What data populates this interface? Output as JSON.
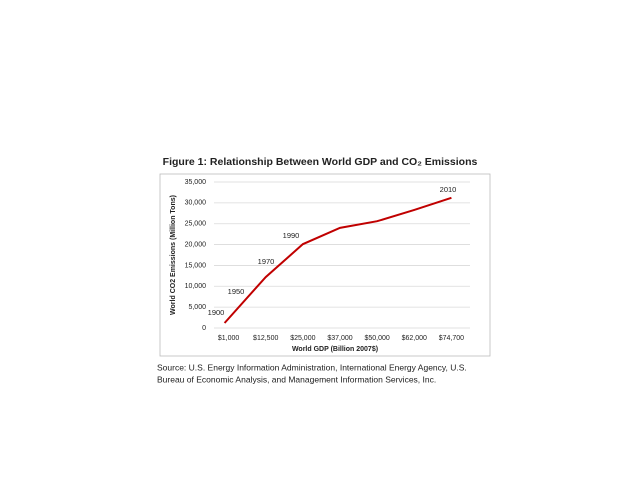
{
  "chart_data": {
    "type": "line",
    "title": "Figure 1:  Relationship Between World GDP and CO₂ Emissions",
    "x_label": "World GDP (Billion 2007$)",
    "y_label": "World CO2 Emissions (Million Tons)",
    "categories": [
      "$1,000",
      "$12,500",
      "$25,000",
      "$37,000",
      "$50,000",
      "$62,000",
      "$74,700"
    ],
    "series": [
      {
        "name": "CO2 Emissions",
        "color": "#c00000",
        "values": [
          1200,
          12200,
          20100,
          24000,
          25600,
          28300,
          31200
        ]
      }
    ],
    "ylim": [
      0,
      35000
    ],
    "yticks": [
      0,
      {
        "value": 5000,
        "label": "5,000"
      },
      {
        "value": 10000,
        "label": "10,000"
      },
      {
        "value": 15000,
        "label": "15,000"
      },
      {
        "value": 20000,
        "label": "20,000"
      },
      {
        "value": 25000,
        "label": "25,000"
      },
      {
        "value": 30000,
        "label": "30,000"
      },
      {
        "value": 35000,
        "label": "35,000"
      }
    ],
    "grid": true,
    "annotations": [
      "1900",
      "1950",
      "1970",
      "1990",
      "2010"
    ],
    "source": [
      "Source:  U.S. Energy Information Administration, International Energy Agency, U.S.",
      "Bureau of Economic Analysis, and Management Information Services, Inc."
    ]
  }
}
